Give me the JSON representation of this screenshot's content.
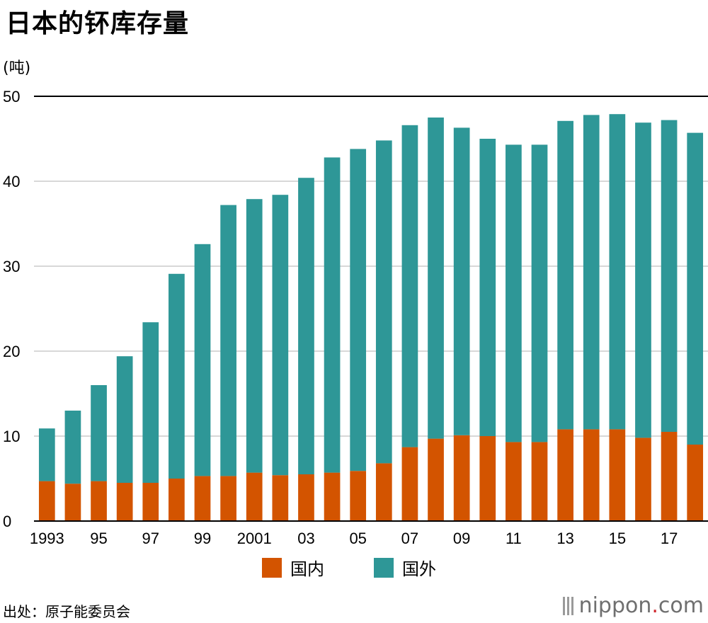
{
  "title": "日本的钚库存量",
  "unit_label": "(吨)",
  "source": "出处：原子能委员会",
  "brand": {
    "name": "nippon",
    "dot": ".",
    "suffix": "com"
  },
  "colors": {
    "domestic": "#d35400",
    "overseas": "#2e9797",
    "grid": "#cccccc",
    "axis": "#000000"
  },
  "chart_data": {
    "type": "bar",
    "stacked": true,
    "categories": [
      "1993",
      "94",
      "95",
      "96",
      "97",
      "98",
      "99",
      "2000",
      "2001",
      "02",
      "03",
      "04",
      "05",
      "06",
      "07",
      "08",
      "09",
      "10",
      "11",
      "12",
      "13",
      "14",
      "15",
      "16",
      "17",
      "18"
    ],
    "x_tick_labels": [
      "1993",
      "",
      "95",
      "",
      "97",
      "",
      "99",
      "",
      "2001",
      "",
      "03",
      "",
      "05",
      "",
      "07",
      "",
      "09",
      "",
      "11",
      "",
      "13",
      "",
      "15",
      "",
      "17",
      ""
    ],
    "series": [
      {
        "name": "国内",
        "values": [
          4.7,
          4.4,
          4.7,
          4.5,
          4.5,
          5.0,
          5.3,
          5.3,
          5.7,
          5.4,
          5.5,
          5.7,
          5.9,
          6.8,
          8.7,
          9.7,
          10.1,
          10.0,
          9.3,
          9.3,
          10.8,
          10.8,
          10.8,
          9.8,
          10.5,
          9.0
        ]
      },
      {
        "name": "国外",
        "values": [
          6.2,
          8.6,
          11.3,
          14.9,
          18.9,
          24.1,
          27.3,
          31.9,
          32.2,
          33.0,
          34.9,
          37.1,
          37.9,
          38.0,
          37.9,
          37.8,
          36.2,
          35.0,
          35.0,
          35.0,
          36.3,
          37.0,
          37.1,
          37.1,
          36.7,
          36.7
        ]
      }
    ],
    "ylim": [
      0,
      50
    ],
    "yticks": [
      0,
      10,
      20,
      30,
      40,
      50
    ],
    "grid": true,
    "legend_position": "bottom"
  }
}
